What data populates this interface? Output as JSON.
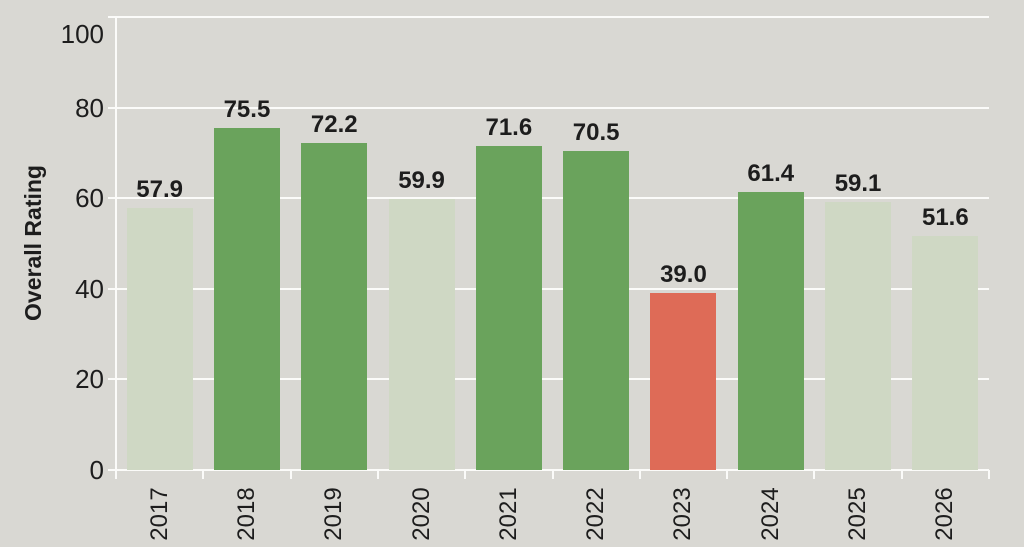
{
  "figure": {
    "background_color": "#d9d8d3",
    "grid_color": "#fbfbf9",
    "text_color": "#1d1d1d"
  },
  "chart_data": {
    "type": "bar",
    "title": "",
    "xlabel": "",
    "ylabel": "Overall Rating",
    "categories": [
      "2017",
      "2018",
      "2019",
      "2020",
      "2021",
      "2022",
      "2023",
      "2024",
      "2025",
      "2026"
    ],
    "values": [
      57.9,
      75.5,
      72.2,
      59.9,
      71.6,
      70.5,
      39.0,
      61.4,
      59.1,
      51.6
    ],
    "value_labels": [
      "57.9",
      "75.5",
      "72.2",
      "59.9",
      "71.6",
      "70.5",
      "39.0",
      "61.4",
      "59.1",
      "51.6"
    ],
    "bar_colors": [
      "#cfd8c4",
      "#6aa35c",
      "#6aa35c",
      "#cfd8c4",
      "#6aa35c",
      "#6aa35c",
      "#de6b57",
      "#6aa35c",
      "#cfd8c4",
      "#cfd8c4"
    ],
    "color_roles": {
      "strong_green": "#6aa35c",
      "muted_green": "#cfd8c4",
      "alert_red": "#de6b57"
    },
    "ylim": [
      0,
      100
    ],
    "yticks": [
      0,
      20,
      40,
      60,
      80,
      100
    ],
    "grid": true,
    "legend": false,
    "x_tick_label_rotation_deg": -90
  }
}
